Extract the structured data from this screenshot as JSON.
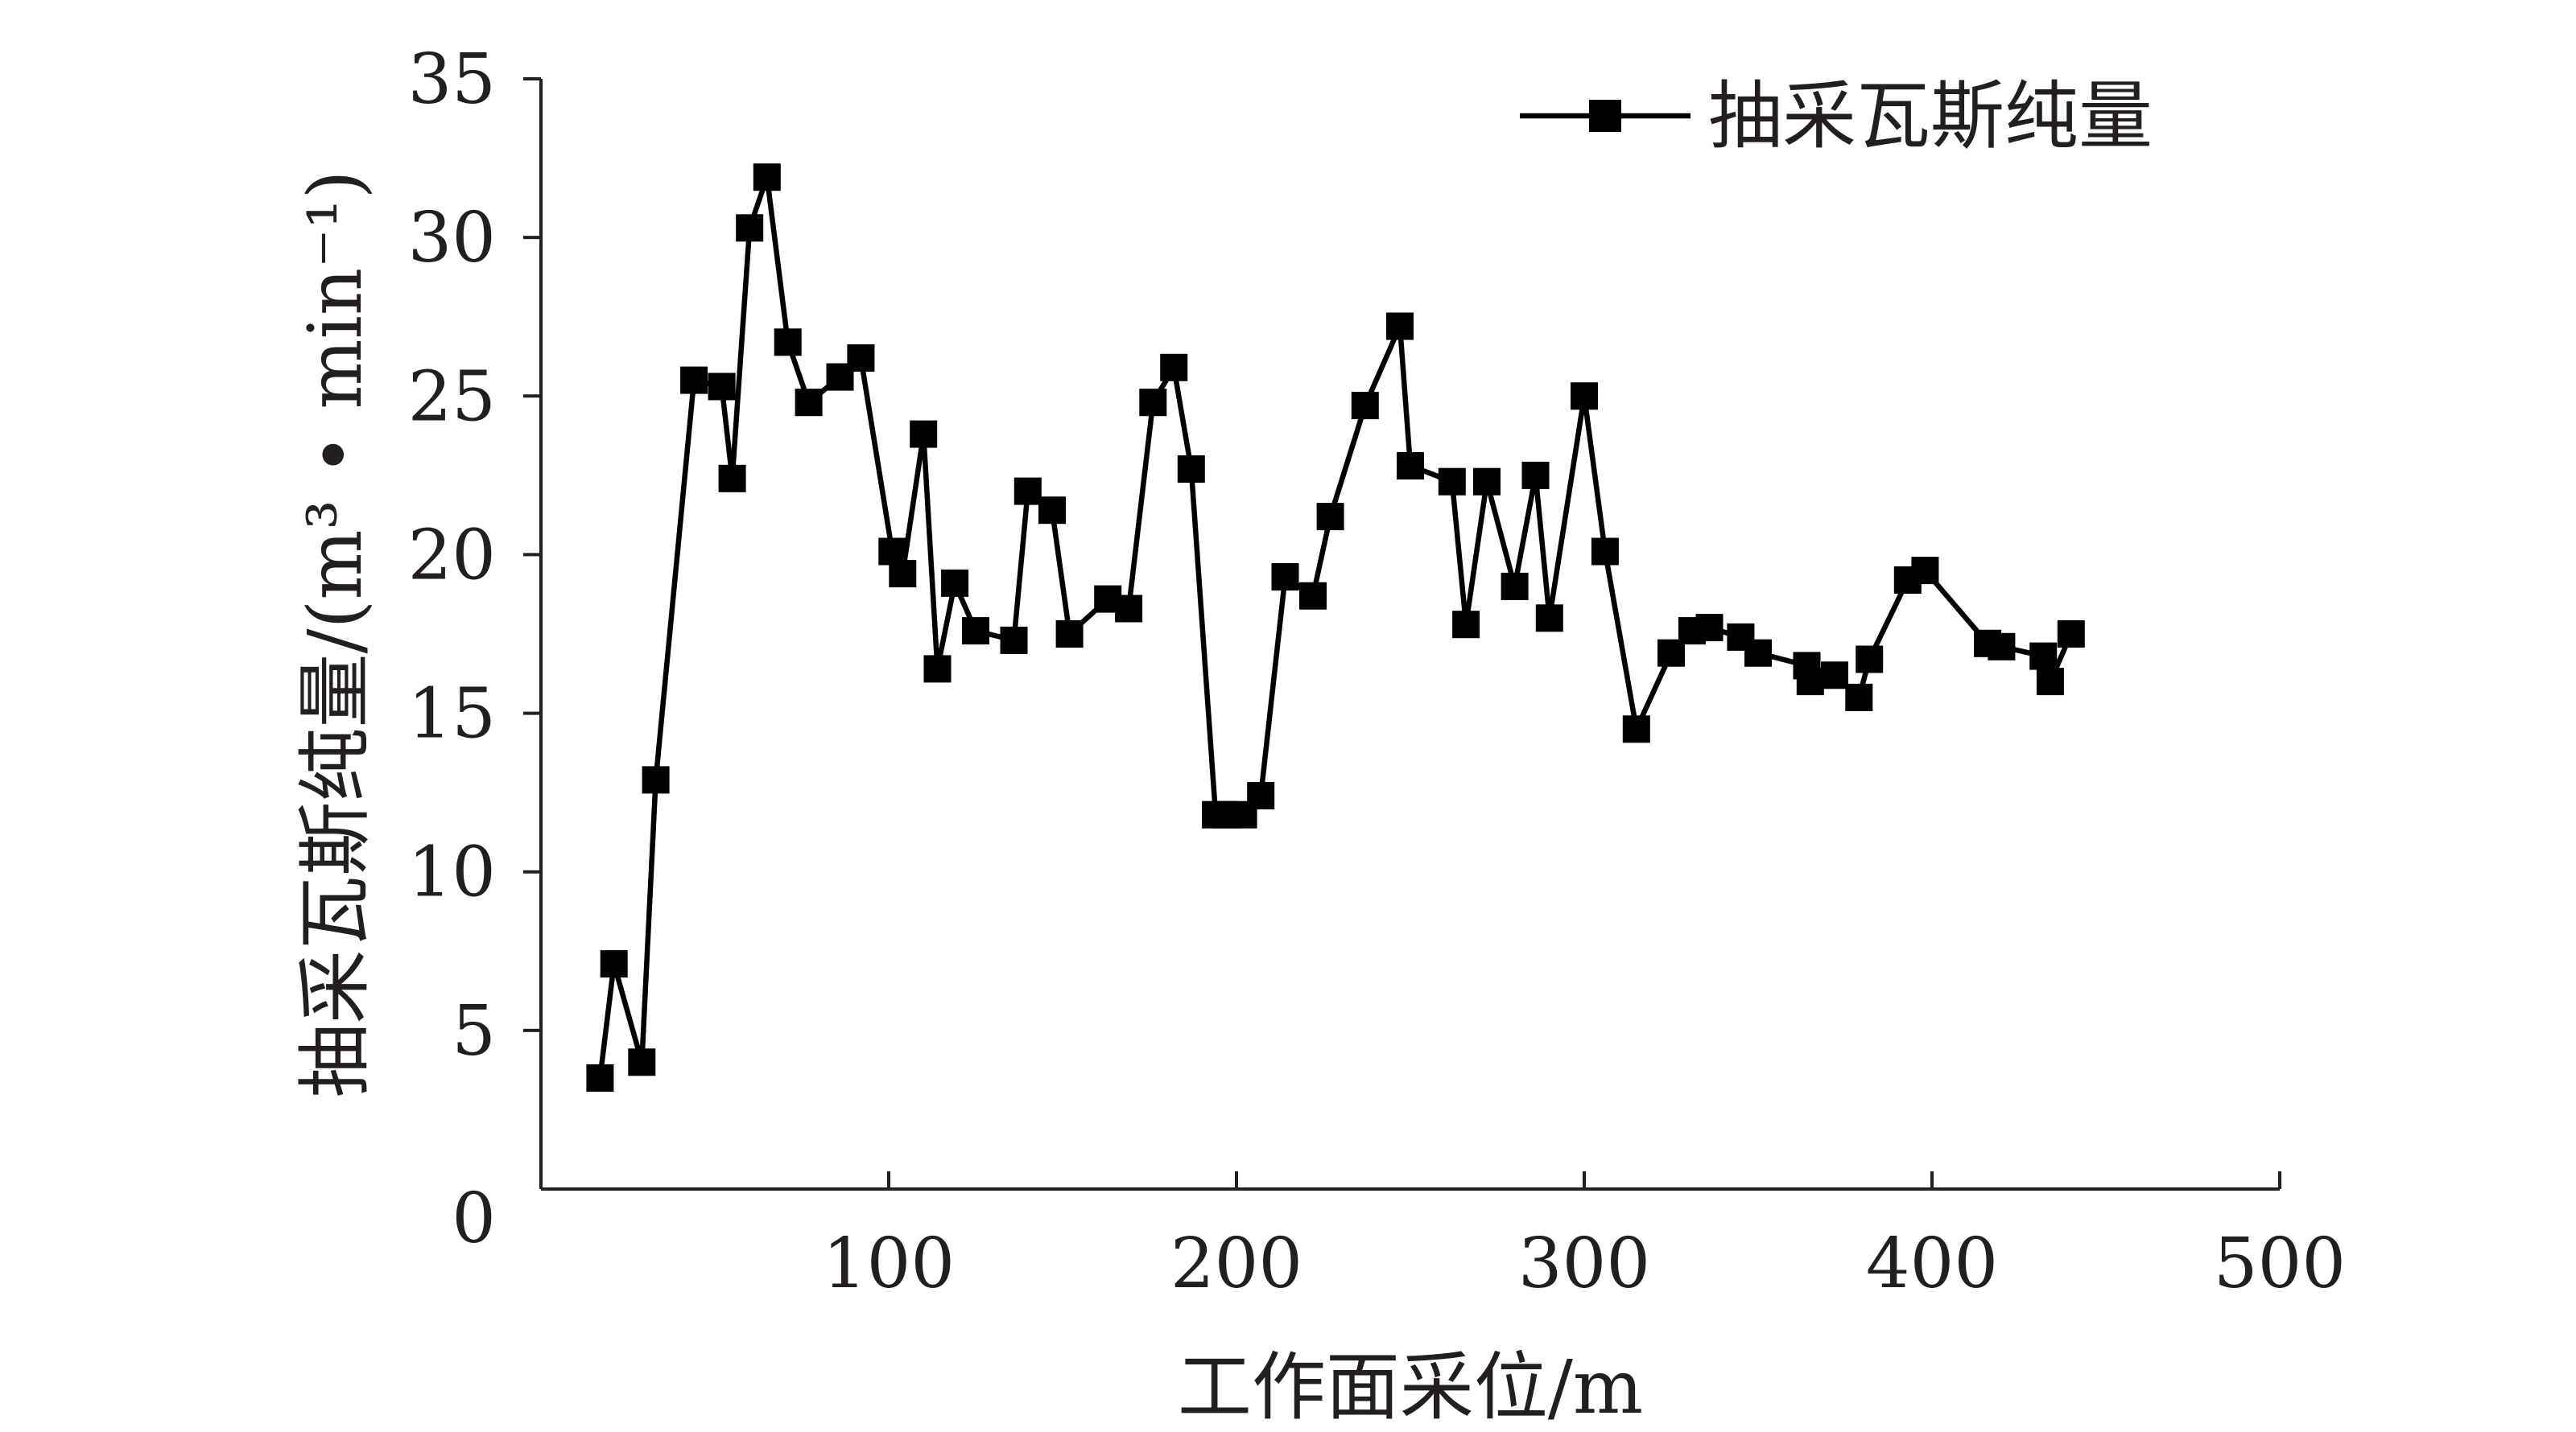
{
  "chart_data": {
    "type": "line",
    "xlabel": "工作面采位/m",
    "ylabel": "抽采瓦斯纯量/(m³ • min⁻¹)",
    "xlim": [
      0,
      500
    ],
    "ylim": [
      0,
      35
    ],
    "x_ticks": [
      100,
      200,
      300,
      400,
      500
    ],
    "y_ticks": [
      0,
      5,
      10,
      15,
      20,
      25,
      30,
      35
    ],
    "grid": false,
    "legend_position": "top-right",
    "colors": {
      "line": "#000000",
      "axis": "#231f20",
      "text": "#231f20"
    },
    "series": [
      {
        "name": "抽采瓦斯纯量",
        "marker": "square",
        "x": [
          17,
          21,
          29,
          33,
          44,
          52,
          55,
          60,
          65,
          71,
          77,
          86,
          92,
          101,
          104,
          110,
          114,
          119,
          125,
          136,
          140,
          147,
          152,
          163,
          169,
          176,
          182,
          187,
          194,
          197,
          202,
          207,
          214,
          222,
          227,
          237,
          247,
          250,
          262,
          266,
          272,
          280,
          286,
          290,
          300,
          306,
          315,
          325,
          331,
          336,
          345,
          350,
          364,
          365,
          372,
          379,
          382,
          393,
          398,
          416,
          420,
          432,
          434,
          440
        ],
        "y": [
          3.5,
          7.1,
          4.0,
          12.9,
          25.5,
          25.3,
          22.4,
          30.3,
          31.9,
          26.7,
          24.8,
          25.6,
          26.2,
          20.1,
          19.4,
          23.8,
          16.4,
          19.1,
          17.6,
          17.3,
          22.0,
          21.4,
          17.5,
          18.6,
          18.3,
          24.8,
          25.9,
          22.7,
          11.8,
          11.8,
          11.8,
          12.4,
          19.3,
          18.7,
          21.2,
          24.7,
          27.2,
          22.8,
          22.3,
          17.8,
          22.3,
          19.0,
          22.5,
          18.0,
          25.0,
          20.1,
          14.5,
          16.9,
          17.6,
          17.7,
          17.4,
          16.9,
          16.5,
          16.0,
          16.2,
          15.5,
          16.7,
          19.2,
          19.5,
          17.2,
          17.1,
          16.8,
          16.0,
          17.5
        ]
      }
    ]
  }
}
